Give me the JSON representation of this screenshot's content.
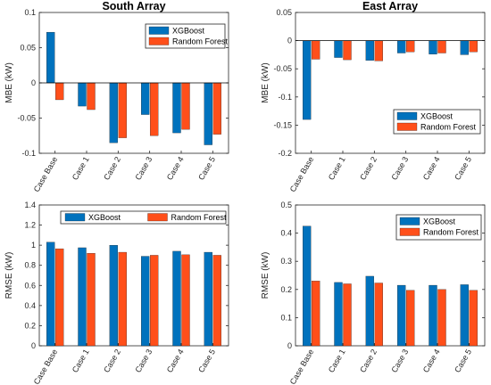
{
  "colors": {
    "xgboost": "#0072BD",
    "random_forest": "#FF4F1A",
    "axis": "#262626",
    "zero_line": "#000000"
  },
  "chart_data": [
    {
      "type": "bar",
      "title": "South Array",
      "xlabel": "",
      "ylabel": "MBE (kW)",
      "ylim": [
        -0.1,
        0.1
      ],
      "yticks": [
        -0.1,
        -0.05,
        0,
        0.05,
        0.1
      ],
      "ytick_labels": [
        "-0.1",
        "-0.05",
        "0",
        "0.05",
        "0.1"
      ],
      "grid": false,
      "legend_position": "top-right",
      "categories": [
        "Case Base",
        "Case 1",
        "Case 2",
        "Case 3",
        "Case 4",
        "Case 5"
      ],
      "series": [
        {
          "name": "XGBoost",
          "values": [
            0.072,
            -0.033,
            -0.085,
            -0.045,
            -0.071,
            -0.088
          ]
        },
        {
          "name": "Random Forest",
          "values": [
            -0.024,
            -0.038,
            -0.078,
            -0.075,
            -0.066,
            -0.073
          ]
        }
      ]
    },
    {
      "type": "bar",
      "title": "East Array",
      "xlabel": "",
      "ylabel": "MBE (kW)",
      "ylim": [
        -0.2,
        0.05
      ],
      "yticks": [
        -0.2,
        -0.15,
        -0.1,
        -0.05,
        0,
        0.05
      ],
      "ytick_labels": [
        "-0.2",
        "-0.15",
        "-0.1",
        "-0.05",
        "0",
        "0.05"
      ],
      "grid": false,
      "legend_position": "bottom-right",
      "categories": [
        "Case Base",
        "Case 1",
        "Case 2",
        "Case 3",
        "Case 4",
        "Case 5"
      ],
      "series": [
        {
          "name": "XGBoost",
          "values": [
            -0.14,
            -0.03,
            -0.035,
            -0.022,
            -0.024,
            -0.025
          ]
        },
        {
          "name": "Random Forest",
          "values": [
            -0.033,
            -0.034,
            -0.036,
            -0.02,
            -0.022,
            -0.02
          ]
        }
      ]
    },
    {
      "type": "bar",
      "title": "",
      "xlabel": "",
      "ylabel": "RMSE (kW)",
      "ylim": [
        0,
        1.4
      ],
      "yticks": [
        0,
        0.2,
        0.4,
        0.6,
        0.8,
        1,
        1.2,
        1.4
      ],
      "ytick_labels": [
        "0",
        "0.2",
        "0.4",
        "0.6",
        "0.8",
        "1",
        "1.2",
        "1.4"
      ],
      "grid": false,
      "legend_position": "top-center",
      "categories": [
        "Case Base",
        "Case 1",
        "Case 2",
        "Case 3",
        "Case 4",
        "Case 5"
      ],
      "series": [
        {
          "name": "XGBoost",
          "values": [
            1.03,
            0.975,
            1.0,
            0.89,
            0.94,
            0.93
          ]
        },
        {
          "name": "Random Forest",
          "values": [
            0.965,
            0.92,
            0.93,
            0.9,
            0.905,
            0.9
          ]
        }
      ]
    },
    {
      "type": "bar",
      "title": "",
      "xlabel": "",
      "ylabel": "RMSE (kW)",
      "ylim": [
        0,
        0.5
      ],
      "yticks": [
        0,
        0.1,
        0.2,
        0.3,
        0.4,
        0.5
      ],
      "ytick_labels": [
        "0",
        "0.1",
        "0.2",
        "0.3",
        "0.4",
        "0.5"
      ],
      "grid": false,
      "legend_position": "top-right",
      "categories": [
        "Case Base",
        "Case 1",
        "Case 2",
        "Case 3",
        "Case 4",
        "Case 5"
      ],
      "series": [
        {
          "name": "XGBoost",
          "values": [
            0.425,
            0.225,
            0.247,
            0.215,
            0.215,
            0.217
          ]
        },
        {
          "name": "Random Forest",
          "values": [
            0.23,
            0.22,
            0.223,
            0.197,
            0.2,
            0.197
          ]
        }
      ]
    }
  ]
}
